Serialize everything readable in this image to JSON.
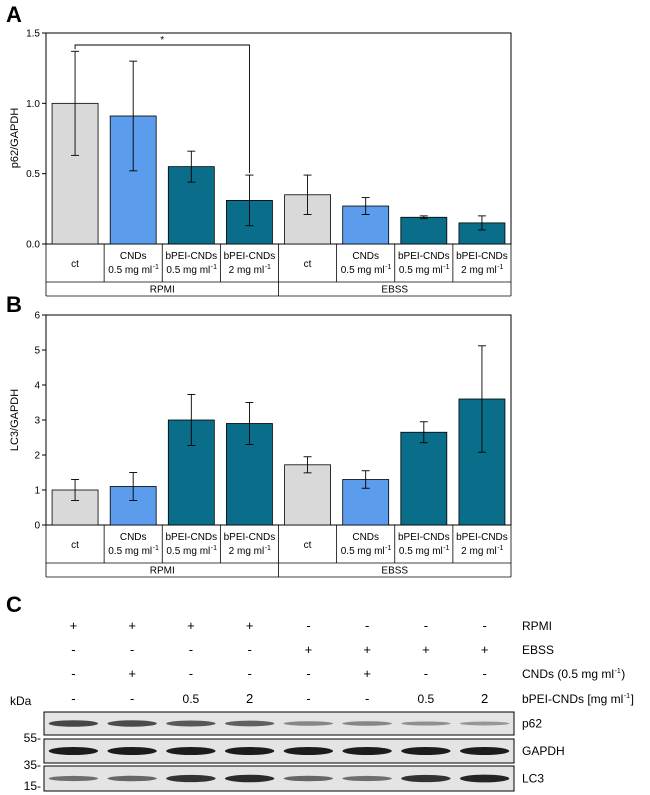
{
  "panels": {
    "a": "A",
    "b": "B",
    "c": "C"
  },
  "colors": {
    "ct": "#d9d9d9",
    "cnds": "#5b9cec",
    "bpei": "#0a6e8a",
    "blot_bg": "#e4e4e4",
    "band": "#1c1c1c"
  },
  "chart_data": [
    {
      "type": "bar",
      "title": "",
      "ylabel": "p62/GAPDH",
      "ylim": [
        0,
        1.5
      ],
      "yticks": [
        "0.0",
        "0.5",
        "1.0",
        "1.5"
      ],
      "categories": [
        "ct",
        "CNDs 0.5 mg ml-1",
        "bPEI-CNDs 0.5 mg ml-1",
        "bPEI-CNDs 2 mg ml-1",
        "ct",
        "CNDs 0.5 mg ml-1",
        "bPEI-CNDs 0.5 mg ml-1",
        "bPEI-CNDs 2 mg ml-1"
      ],
      "groups": [
        "RPMI",
        "RPMI",
        "RPMI",
        "RPMI",
        "EBSS",
        "EBSS",
        "EBSS",
        "EBSS"
      ],
      "values": [
        1.0,
        0.91,
        0.55,
        0.31,
        0.35,
        0.27,
        0.19,
        0.15
      ],
      "errors": [
        0.37,
        0.39,
        0.11,
        0.18,
        0.14,
        0.06,
        0.01,
        0.05
      ],
      "significance": {
        "from": 1,
        "to": 4,
        "label": "*"
      }
    },
    {
      "type": "bar",
      "title": "",
      "ylabel": "LC3/GAPDH",
      "ylim": [
        0,
        6
      ],
      "yticks": [
        "0",
        "1",
        "2",
        "3",
        "4",
        "5",
        "6"
      ],
      "categories": [
        "ct",
        "CNDs 0.5 mg ml-1",
        "bPEI-CNDs 0.5 mg ml-1",
        "bPEI-CNDs 2 mg ml-1",
        "ct",
        "CNDs 0.5 mg ml-1",
        "bPEI-CNDs 0.5 mg ml-1",
        "bPEI-CNDs 2 mg ml-1"
      ],
      "groups": [
        "RPMI",
        "RPMI",
        "RPMI",
        "RPMI",
        "EBSS",
        "EBSS",
        "EBSS",
        "EBSS"
      ],
      "values": [
        1.0,
        1.1,
        3.0,
        2.9,
        1.72,
        1.3,
        2.65,
        3.6
      ],
      "errors": [
        0.3,
        0.4,
        0.73,
        0.6,
        0.23,
        0.25,
        0.3,
        1.52
      ]
    }
  ],
  "category_labels": [
    {
      "l1": "ct",
      "l2": ""
    },
    {
      "l1": "CNDs",
      "l2": "0.5 mg ml"
    },
    {
      "l1": "bPEI-CNDs",
      "l2": "0.5 mg ml"
    },
    {
      "l1": "bPEI-CNDs",
      "l2": "2 mg ml"
    },
    {
      "l1": "ct",
      "l2": ""
    },
    {
      "l1": "CNDs",
      "l2": "0.5 mg ml"
    },
    {
      "l1": "bPEI-CNDs",
      "l2": "0.5 mg ml"
    },
    {
      "l1": "bPEI-CNDs",
      "l2": "2 mg ml"
    }
  ],
  "unit_superscript": "-1",
  "group_labels": [
    "RPMI",
    "EBSS"
  ],
  "western_blot": {
    "kda_label": "kDa",
    "conditions": [
      {
        "label": "RPMI",
        "values": [
          "+",
          "+",
          "+",
          "+",
          "-",
          "-",
          "-",
          "-"
        ]
      },
      {
        "label": "EBSS",
        "values": [
          "-",
          "-",
          "-",
          "-",
          "+",
          "+",
          "+",
          "+"
        ]
      },
      {
        "label": "CNDs (0.5 mg ml",
        "sup": "-1",
        "close": ")",
        "values": [
          "-",
          "+",
          "-",
          "-",
          "-",
          "+",
          "-",
          "-"
        ]
      },
      {
        "label": "bPEI-CNDs [mg ml",
        "sup": "-1",
        "close": "]",
        "values": [
          "-",
          "-",
          "0.5",
          "2",
          "-",
          "-",
          "0.5",
          "2"
        ]
      }
    ],
    "blots": [
      {
        "label": "p62",
        "intensity": [
          0.72,
          0.7,
          0.6,
          0.55,
          0.3,
          0.3,
          0.22,
          0.18
        ]
      },
      {
        "label": "GAPDH",
        "intensity": [
          1.0,
          1.0,
          1.0,
          1.0,
          1.0,
          1.0,
          1.0,
          1.0
        ]
      },
      {
        "label": "LC3",
        "intensity": [
          0.45,
          0.5,
          0.85,
          0.9,
          0.5,
          0.45,
          0.85,
          0.95
        ]
      }
    ],
    "markers": [
      "55-",
      "35-",
      "15-"
    ]
  }
}
